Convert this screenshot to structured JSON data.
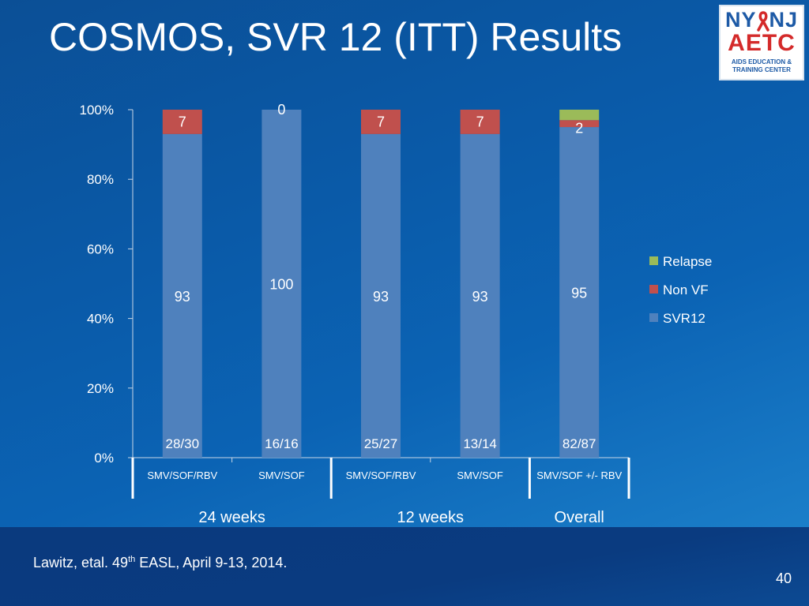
{
  "title": "COSMOS, SVR 12 (ITT) Results",
  "logo": {
    "line1": "NY",
    "line1b": "NJ",
    "line2": "AETC",
    "line3a": "AIDS EDUCATION &",
    "line3b": "TRAINING CENTER",
    "ribbon_color": "#d42a2a"
  },
  "colors": {
    "svr12": "#4f81bd",
    "non_vf": "#c0504d",
    "relapse": "#9bbb59"
  },
  "chart_data": {
    "type": "bar",
    "stacked": true,
    "categories": [
      "SMV/SOF/RBV",
      "SMV/SOF",
      "SMV/SOF/RBV",
      "SMV/SOF",
      "SMV/SOF +/- RBV"
    ],
    "groups": [
      {
        "label": "24 weeks",
        "categories": [
          0,
          1
        ]
      },
      {
        "label": "12 weeks",
        "categories": [
          2,
          3
        ]
      },
      {
        "label": "Overall",
        "categories": [
          4
        ]
      }
    ],
    "series": [
      {
        "name": "SVR12",
        "values": [
          93,
          100,
          93,
          93,
          95
        ],
        "labels": [
          "93",
          "100",
          "93",
          "93",
          "95"
        ]
      },
      {
        "name": "Non VF",
        "values": [
          7,
          0,
          7,
          7,
          2
        ],
        "labels": [
          "7",
          "0",
          "7",
          "7",
          "2"
        ]
      },
      {
        "name": "Relapse",
        "values": [
          0,
          0,
          0,
          0,
          3
        ],
        "labels": [
          "",
          "",
          "",
          "",
          ""
        ]
      }
    ],
    "counts": [
      "28/30",
      "16/16",
      "25/27",
      "13/14",
      "82/87"
    ],
    "yticks": [
      "0%",
      "20%",
      "40%",
      "60%",
      "80%",
      "100%"
    ],
    "ylim": [
      0,
      100
    ],
    "legend": [
      "Relapse",
      "Non VF",
      "SVR12"
    ],
    "legend_position": "right"
  },
  "citation": {
    "prefix": "Lawitz, etal. 49",
    "sup": "th",
    "suffix": " EASL, April 9-13, 2014."
  },
  "page_number": "40"
}
